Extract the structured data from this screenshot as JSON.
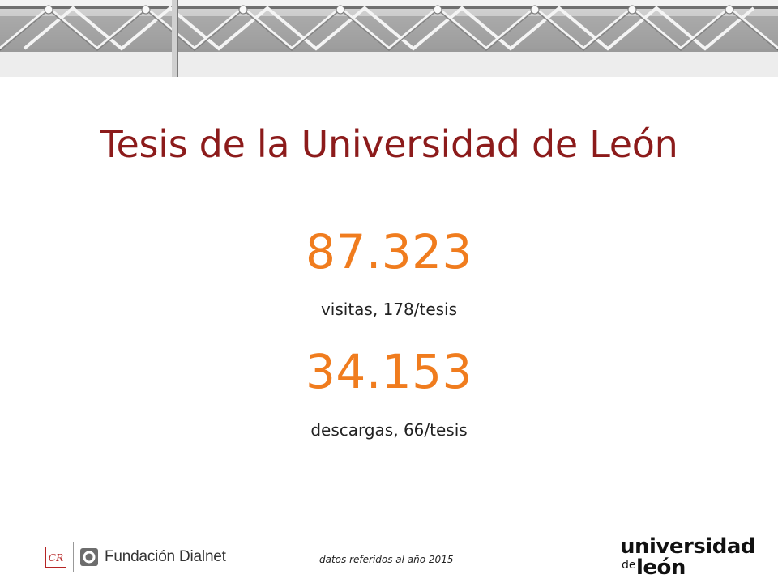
{
  "slide": {
    "title": "Tesis de la Universidad de León",
    "stats": [
      {
        "value": "87.323",
        "label": "visitas, 178/tesis"
      },
      {
        "value": "34.153",
        "label": "descargas, 66/tesis"
      }
    ],
    "footnote": "datos referidos al año 2015"
  },
  "logos": {
    "dialnet_text": "Fundación Dialnet",
    "crue_mark": "CR",
    "ule_line1": "universidad",
    "ule_de": "de",
    "ule_line2": "león"
  },
  "colors": {
    "title": "#8c1b1b",
    "stat": "#f07c1e",
    "text": "#222222"
  }
}
